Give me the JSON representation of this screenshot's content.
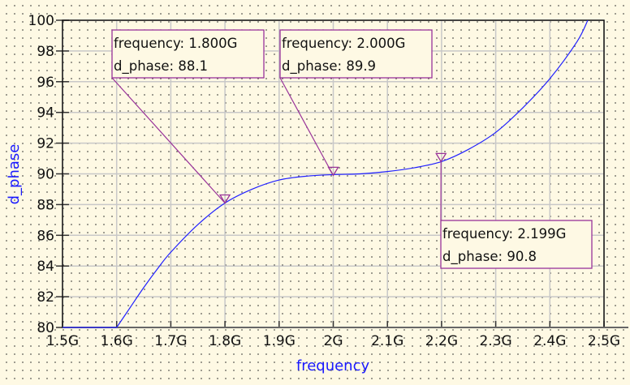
{
  "chart_data": {
    "type": "line",
    "xlabel": "frequency",
    "ylabel": "d_phase",
    "xlim": [
      1.5,
      2.5
    ],
    "ylim": [
      80,
      100
    ],
    "grid": true,
    "x_ticks": [
      "1.5G",
      "1.6G",
      "1.7G",
      "1.8G",
      "1.9G",
      "2G",
      "2.1G",
      "2.2G",
      "2.3G",
      "2.4G",
      "2.5G"
    ],
    "y_ticks": [
      "80",
      "82",
      "84",
      "86",
      "88",
      "90",
      "92",
      "94",
      "96",
      "98",
      "100"
    ],
    "series": [
      {
        "color": "#2020ff",
        "x": [
          1.5,
          1.6,
          1.625,
          1.65,
          1.675,
          1.7,
          1.75,
          1.8,
          1.85,
          1.9,
          1.95,
          2.0,
          2.05,
          2.1,
          2.15,
          2.2,
          2.25,
          2.3,
          2.35,
          2.4,
          2.45,
          2.47
        ],
        "y": [
          80,
          80,
          81.3,
          82.6,
          83.8,
          84.9,
          86.7,
          88.1,
          89.0,
          89.6,
          89.85,
          89.95,
          90.0,
          90.15,
          90.4,
          90.8,
          91.6,
          92.7,
          94.3,
          96.2,
          98.6,
          100
        ]
      }
    ],
    "markers": [
      {
        "x": 1.8,
        "y": 88.1,
        "line1": "frequency: 1.800G",
        "line2": "d_phase: 88.1"
      },
      {
        "x": 2.0,
        "y": 89.9,
        "line1": "frequency: 2.000G",
        "line2": "d_phase: 89.9"
      },
      {
        "x": 2.199,
        "y": 90.8,
        "line1": "frequency: 2.199G",
        "line2": "d_phase: 90.8"
      }
    ],
    "marker_color": "#993399",
    "grid_color": "#c8c8c8"
  }
}
